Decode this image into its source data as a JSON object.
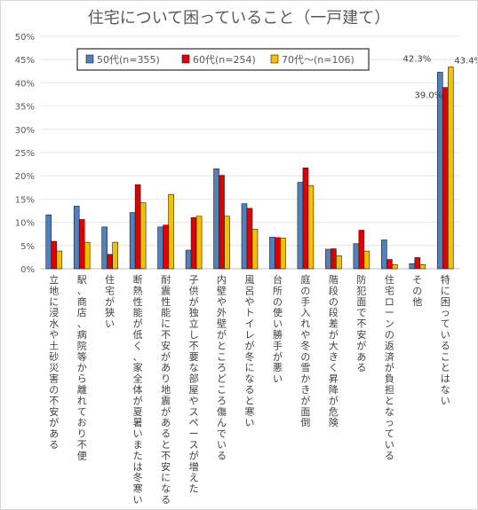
{
  "chart_data": {
    "type": "bar",
    "title": "住宅について困っていること（一戸建て）",
    "categories": [
      "立地に浸水や土砂災害の不安がある",
      "駅、商店、病院等から離れており不便",
      "住宅が狭い",
      "断熱性能が低く、家全体が夏暑いまたは冬寒い",
      "耐震性能に不安があり地震があると不安になる",
      "子供が独立し不要な部屋やスペースが増えた",
      "内壁や外壁がところどころ傷んでいる",
      "風呂やトイレが冬になると寒い",
      "台所の使い勝手が悪い",
      "庭の手入れや冬の雪かきが面倒",
      "階段の段差が大きく昇降が危険",
      "防犯面で不安がある",
      "住宅ローンの返済が負担となっている",
      "その他",
      "特に困っていることはない"
    ],
    "series": [
      {
        "name": "50代(n=355)",
        "color": "#4f81bd",
        "values": [
          11.6,
          13.5,
          9.0,
          12.1,
          9.0,
          4.0,
          21.5,
          14.0,
          6.8,
          18.6,
          4.2,
          5.4,
          6.2,
          1.1,
          42.3
        ]
      },
      {
        "name": "60代(n=254)",
        "color": "#e00000",
        "values": [
          5.9,
          10.6,
          3.1,
          18.1,
          9.4,
          11.0,
          20.1,
          13.0,
          6.7,
          21.7,
          4.3,
          8.3,
          2.0,
          2.4,
          39.0
        ]
      },
      {
        "name": "70代〜(n=106)",
        "color": "#f5c000",
        "values": [
          3.8,
          5.7,
          5.7,
          14.2,
          16.0,
          11.3,
          11.3,
          8.5,
          6.6,
          17.9,
          2.8,
          3.8,
          0.9,
          0.9,
          43.4
        ]
      }
    ],
    "data_labels": [
      "42.3%",
      "39.0%",
      "43.4%"
    ],
    "y_ticks": [
      "0%",
      "5%",
      "10%",
      "15%",
      "20%",
      "25%",
      "30%",
      "35%",
      "40%",
      "45%",
      "50%"
    ],
    "ylim": [
      0,
      50
    ],
    "grid": true,
    "legend_position": "top-left"
  }
}
